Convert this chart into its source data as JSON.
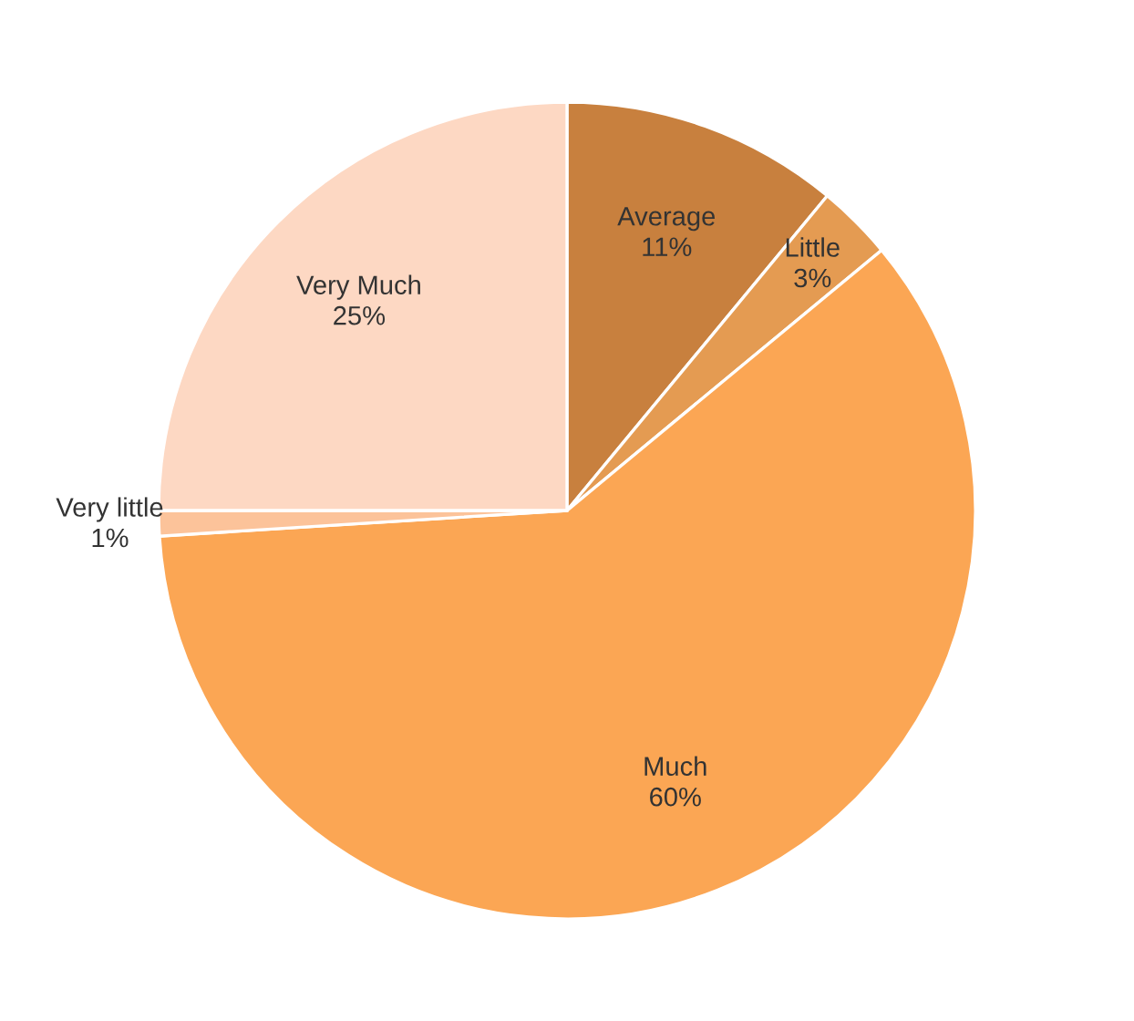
{
  "chart_data": {
    "type": "pie",
    "categories": [
      "Average",
      "Little",
      "Much",
      "Very little",
      "Very Much"
    ],
    "values": [
      11,
      3,
      60,
      1,
      25
    ],
    "colors": [
      "#c8803e",
      "#e49b52",
      "#fba654",
      "#fcc39a",
      "#fdd8c3"
    ],
    "value_labels": [
      "11%",
      "3%",
      "60%",
      "1%",
      "25%"
    ],
    "legend": false
  }
}
